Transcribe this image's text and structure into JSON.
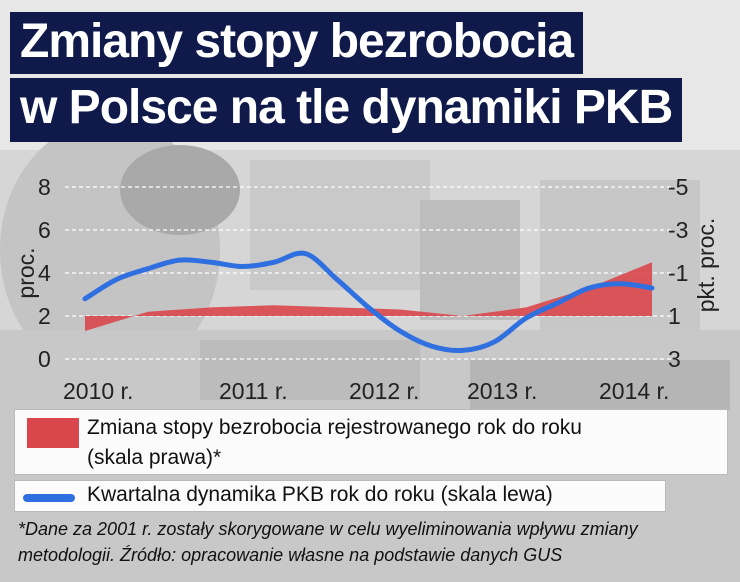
{
  "title": {
    "line1": "Zmiany stopy bezrobocia",
    "line2": "w Polsce na tle dynamiki PKB"
  },
  "chart_data": {
    "type": "line",
    "y_left": {
      "label": "proc.",
      "ticks": [
        "8",
        "6",
        "4",
        "2",
        "0"
      ],
      "ylim": [
        0,
        8
      ]
    },
    "y_right": {
      "label": "pkt. proc.",
      "ticks": [
        "-5",
        "-3",
        "-1",
        "1",
        "3"
      ],
      "ylim": [
        -5,
        3
      ],
      "inverted": true
    },
    "x_ticks": [
      "2010 r.",
      "2011 r.",
      "2012 r.",
      "2013 r.",
      "2014 r."
    ],
    "series": [
      {
        "name": "Kwartalna dynamika PKB rok do roku (skala lewa)",
        "axis": "left",
        "color": "#2f6fe0",
        "x": [
          2010.0,
          2010.25,
          2010.5,
          2010.75,
          2011.0,
          2011.25,
          2011.5,
          2011.75,
          2012.0,
          2012.25,
          2012.5,
          2012.75,
          2013.0,
          2013.25,
          2013.5,
          2013.75,
          2014.0,
          2014.25,
          2014.5
        ],
        "values": [
          2.8,
          3.7,
          4.2,
          4.6,
          4.5,
          4.3,
          4.5,
          4.9,
          3.7,
          2.4,
          1.3,
          0.6,
          0.4,
          0.8,
          1.9,
          2.6,
          3.3,
          3.5,
          3.3
        ]
      },
      {
        "name": "Zmiana stopy bezrobocia rejestrowanego rok do roku (skala prawa)*",
        "axis": "right",
        "type": "area",
        "color": "#d9474c",
        "x": [
          2010.0,
          2010.5,
          2011.0,
          2011.5,
          2012.0,
          2012.5,
          2013.0,
          2013.5,
          2014.0,
          2014.5
        ],
        "values": [
          1.7,
          0.8,
          0.6,
          0.5,
          0.6,
          0.7,
          1.0,
          0.6,
          -0.3,
          -1.5
        ],
        "baseline": 1.0
      }
    ],
    "legend": [
      {
        "label_line1": "Zmiana stopy bezrobocia rejestrowanego rok do roku",
        "label_line2": "(skala prawa)*"
      },
      {
        "label": "Kwartalna dynamika PKB rok do roku (skala lewa)"
      }
    ]
  },
  "footnote": "*Dane za 2001 r. zostały skorygowane w celu wyeliminowania wpływu zmiany metodologii. Źródło: opracowanie własne na podstawie danych GUS"
}
